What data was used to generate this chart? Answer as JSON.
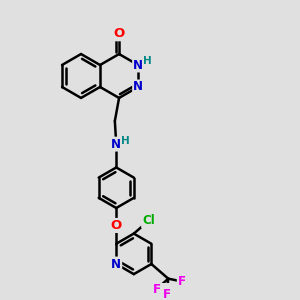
{
  "bg_color": "#e0e0e0",
  "bond_color": "#000000",
  "bond_width": 1.8,
  "atom_colors": {
    "O": "#ff0000",
    "N": "#0000cc",
    "Cl": "#00aa00",
    "F": "#ee00ee",
    "H": "#008888",
    "C": "#000000"
  },
  "font_size": 8.5,
  "fig_size": [
    3.0,
    3.0
  ],
  "dpi": 100,
  "xlim": [
    0,
    10
  ],
  "ylim": [
    0,
    10
  ]
}
